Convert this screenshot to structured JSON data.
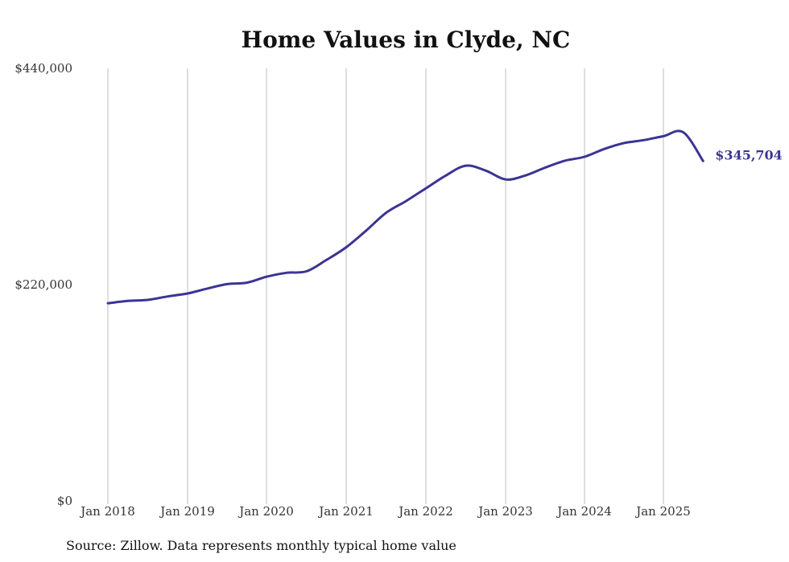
{
  "chart_data": {
    "type": "line",
    "title": "Home Values in Clyde, NC",
    "xlabel": "",
    "ylabel": "",
    "ylim": [
      0,
      440000
    ],
    "y_ticks": [
      "$0",
      "$220,000",
      "$440,000"
    ],
    "y_tick_values": [
      0,
      220000,
      440000
    ],
    "x_ticks": [
      "Jan 2018",
      "Jan 2019",
      "Jan 2020",
      "Jan 2021",
      "Jan 2022",
      "Jan 2023",
      "Jan 2024",
      "Jan 2025"
    ],
    "grid": "vertical",
    "line_color": "#3b3494",
    "end_label": "$345,704",
    "series": [
      {
        "x": [
          "2018-01",
          "2018-04",
          "2018-07",
          "2018-10",
          "2019-01",
          "2019-04",
          "2019-07",
          "2019-10",
          "2020-01",
          "2020-04",
          "2020-07",
          "2020-10",
          "2021-01",
          "2021-04",
          "2021-07",
          "2021-10",
          "2022-01",
          "2022-04",
          "2022-07",
          "2022-10",
          "2023-01",
          "2023-04",
          "2023-07",
          "2023-10",
          "2024-01",
          "2024-04",
          "2024-07",
          "2024-10",
          "2025-01",
          "2025-04",
          "2025-07"
        ],
        "values": [
          201000,
          203500,
          204500,
          208000,
          211000,
          216000,
          220500,
          222000,
          228000,
          232000,
          233500,
          245000,
          258000,
          275000,
          293000,
          305000,
          318000,
          331000,
          341000,
          336000,
          327000,
          331000,
          339000,
          346000,
          350000,
          358000,
          364000,
          367000,
          371000,
          375000,
          345704
        ]
      }
    ]
  },
  "footer": {
    "source": "Source: Zillow. Data represents monthly typical home value"
  }
}
